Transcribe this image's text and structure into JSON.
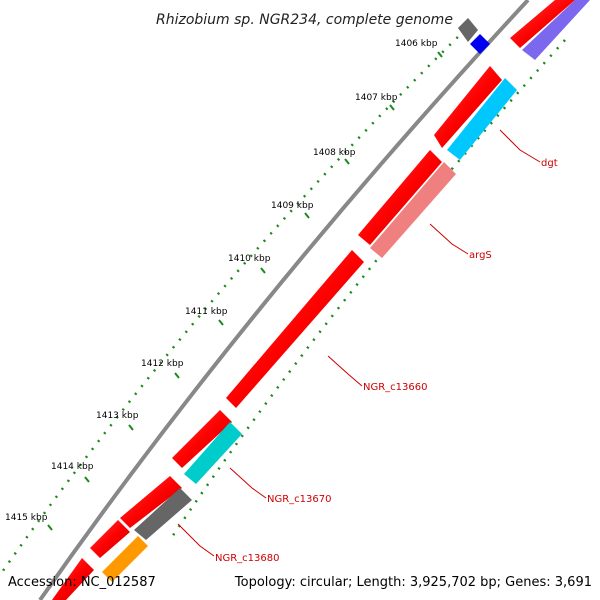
{
  "title": "Rhizobium sp. NGR234, complete genome",
  "footer": {
    "accession": "Accession: NC_012587",
    "stats": "Topology: circular; Length: 3,925,702 bp; Genes: 3,691"
  },
  "ticks": [
    "1406 kbp",
    "1407 kbp",
    "1408 kbp",
    "1409 kbp",
    "1410 kbp",
    "1411 kbp",
    "1412 kbp",
    "1413 kbp",
    "1414 kbp",
    "1415 kbp"
  ],
  "gene_labels": [
    "dgt",
    "argS",
    "NGR_c13660",
    "NGR_c13670",
    "NGR_c13680"
  ],
  "colors": {
    "cds": "#ff0000",
    "cyan": "#00c8ff",
    "pink": "#f08080",
    "turquoise": "#00cccc",
    "gray": "#666666",
    "orange": "#ff9900",
    "blue": "#0000ee",
    "lavender": "#7b68ee",
    "backbone": "#888888",
    "tick": "#007700"
  }
}
